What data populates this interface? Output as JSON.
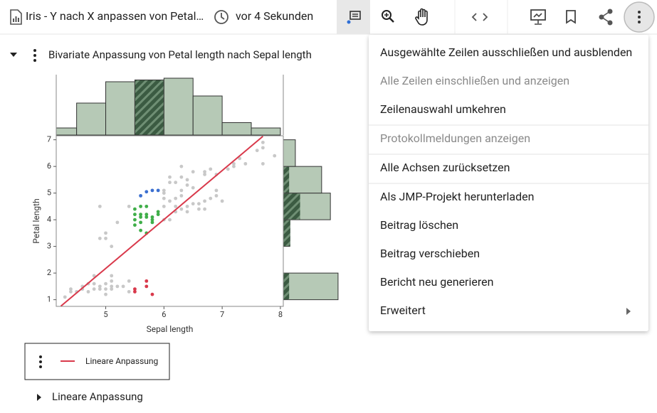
{
  "toolbar": {
    "title": "Iris - Y nach X anpassen von Petal…",
    "timestamp": "vor 4 Sekunden"
  },
  "report": {
    "title": "Bivariate Anpassung von Petal length nach Sepal length",
    "outline": "Lineare Anpassung"
  },
  "chart_data": {
    "type": "scatter",
    "x_label": "Sepal length",
    "y_label": "Petal length",
    "xlim": [
      4.15,
      8.05
    ],
    "ylim": [
      0.75,
      7.15
    ],
    "xticks": [
      5,
      6,
      7,
      8
    ],
    "yticks": [
      1,
      2,
      3,
      4,
      5,
      6,
      7
    ],
    "series": [
      {
        "color": "#c8c8c8",
        "x": [
          4.3,
          4.4,
          4.4,
          4.5,
          4.6,
          4.6,
          4.7,
          4.7,
          4.8,
          4.8,
          4.8,
          4.9,
          4.9,
          5.0,
          5.0,
          5.0,
          5.1,
          5.1,
          5.1,
          5.2,
          5.3,
          5.4,
          5.4,
          5.1,
          5.0,
          4.9,
          5.0,
          5.1,
          5.2,
          4.9,
          5.4,
          6.0,
          6.0,
          6.1,
          6.1,
          6.2,
          6.2,
          6.3,
          6.3,
          6.4,
          6.4,
          6.5,
          6.6,
          6.6,
          6.7,
          6.7,
          6.8,
          6.9,
          7.0,
          6.0,
          6.1,
          6.2,
          6.3,
          6.3,
          6.4,
          6.5,
          6.7,
          6.7,
          6.8,
          6.9,
          7.1,
          7.2,
          7.2,
          7.3,
          7.4,
          7.6,
          7.7,
          7.7,
          7.7,
          7.9,
          6.1,
          6.4,
          6.5,
          6.9,
          6.3,
          6.0,
          6.2,
          6.0
        ],
        "values": [
          1.1,
          1.3,
          1.4,
          1.3,
          1.4,
          1.5,
          1.3,
          1.6,
          1.4,
          1.6,
          1.9,
          1.4,
          1.5,
          1.2,
          1.4,
          1.6,
          1.4,
          1.5,
          1.7,
          1.5,
          1.5,
          1.3,
          1.7,
          1.9,
          3.3,
          3.3,
          3.5,
          3.0,
          3.9,
          4.5,
          4.5,
          4.0,
          4.5,
          4.0,
          4.7,
          4.3,
          4.5,
          4.4,
          4.9,
          4.3,
          4.5,
          4.6,
          4.4,
          4.6,
          4.4,
          4.7,
          4.8,
          4.9,
          4.7,
          5.1,
          5.6,
          5.4,
          5.6,
          6.0,
          5.5,
          5.8,
          5.7,
          5.8,
          5.9,
          5.7,
          5.9,
          6.0,
          6.1,
          6.3,
          6.1,
          6.6,
          6.7,
          6.9,
          6.1,
          6.4,
          5.4,
          5.3,
          5.2,
          5.1,
          5.1,
          4.8,
          4.8,
          5.0
        ]
      },
      {
        "color": "#3fae49",
        "x": [
          5.5,
          5.5,
          5.5,
          5.6,
          5.6,
          5.6,
          5.6,
          5.6,
          5.7,
          5.7,
          5.7,
          5.8,
          5.8,
          5.8,
          5.9,
          5.9,
          5.5,
          5.7
        ],
        "values": [
          3.8,
          4.0,
          4.4,
          3.6,
          3.9,
          4.1,
          4.2,
          4.5,
          3.5,
          4.1,
          4.2,
          3.9,
          4.0,
          4.1,
          4.2,
          4.3,
          4.2,
          4.5
        ]
      },
      {
        "color": "#3b6fd0",
        "x": [
          5.6,
          5.7,
          5.8,
          5.9
        ],
        "values": [
          4.9,
          5.05,
          5.1,
          5.1
        ]
      },
      {
        "color": "#d9394b",
        "x": [
          5.5,
          5.5,
          5.7,
          5.7,
          5.8
        ],
        "values": [
          1.4,
          1.3,
          1.7,
          1.5,
          1.2
        ]
      }
    ],
    "fit": {
      "name": "Lineare Anpassung",
      "color": "#d9394b",
      "x": [
        4.23,
        7.7
      ],
      "values": [
        0.76,
        7.13
      ]
    },
    "x_histogram": {
      "bins": [
        4.0,
        4.5,
        5.0,
        5.5,
        6.0,
        6.5,
        7.0,
        7.5,
        8.0
      ],
      "counts": [
        4,
        18,
        30,
        31,
        32,
        22,
        7,
        4
      ],
      "selected": [
        0,
        0,
        0,
        31,
        0,
        0,
        0,
        0
      ],
      "lim": [
        0,
        36
      ]
    },
    "y_histogram": {
      "bins": [
        1,
        2,
        3,
        4,
        5,
        6,
        7
      ],
      "counts": [
        50,
        0,
        6,
        43,
        35,
        11
      ],
      "selected": [
        5,
        0,
        6,
        15,
        5,
        0
      ],
      "lim": [
        0,
        65
      ]
    }
  },
  "menu": {
    "items": [
      {
        "label": "Ausgewählte Zeilen ausschließen und ausblenden",
        "enabled": true
      },
      {
        "label": "Alle Zeilen einschließen und anzeigen",
        "enabled": false
      },
      {
        "label": "Zeilenauswahl umkehren",
        "enabled": true
      },
      {
        "label": "Protokollmeldungen anzeigen",
        "enabled": false
      },
      {
        "label": "Alle Achsen zurücksetzen",
        "enabled": true
      },
      {
        "label": "Als JMP-Projekt herunterladen",
        "enabled": true
      },
      {
        "label": "Beitrag löschen",
        "enabled": true
      },
      {
        "label": "Beitrag verschieben",
        "enabled": true
      },
      {
        "label": "Bericht neu generieren",
        "enabled": true
      },
      {
        "label": "Erweitert",
        "enabled": true
      }
    ]
  }
}
